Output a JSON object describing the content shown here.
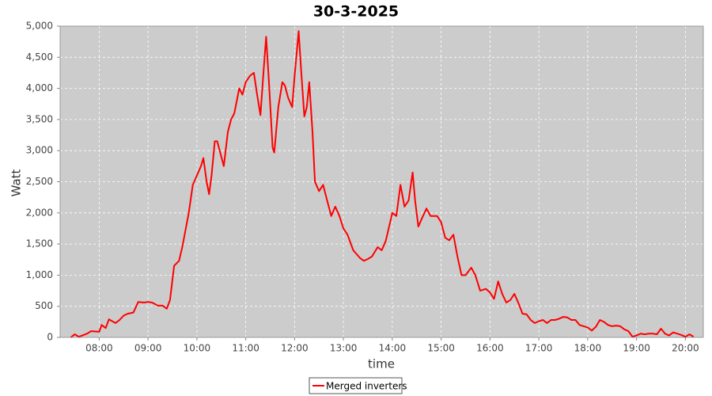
{
  "chart_data": {
    "type": "line",
    "title": "30-3-2025",
    "x_label": "time",
    "y_label": "Watt",
    "x": [
      "07:25",
      "07:30",
      "07:35",
      "07:45",
      "07:50",
      "08:00",
      "08:03",
      "08:08",
      "08:12",
      "08:20",
      "08:25",
      "08:30",
      "08:35",
      "08:42",
      "08:48",
      "08:55",
      "09:00",
      "09:05",
      "09:12",
      "09:18",
      "09:23",
      "09:27",
      "09:32",
      "09:38",
      "09:42",
      "09:50",
      "09:55",
      "10:00",
      "10:05",
      "10:08",
      "10:12",
      "10:15",
      "10:18",
      "10:22",
      "10:25",
      "10:30",
      "10:33",
      "10:38",
      "10:42",
      "10:46",
      "10:52",
      "10:56",
      "11:00",
      "11:05",
      "11:10",
      "11:14",
      "11:18",
      "11:22",
      "11:25",
      "11:28",
      "11:33",
      "11:35",
      "11:40",
      "11:45",
      "11:48",
      "11:52",
      "11:57",
      "12:00",
      "12:05",
      "12:08",
      "12:12",
      "12:15",
      "12:18",
      "12:22",
      "12:25",
      "12:30",
      "12:35",
      "12:40",
      "12:45",
      "12:50",
      "12:55",
      "13:00",
      "13:05",
      "13:12",
      "13:20",
      "13:25",
      "13:30",
      "13:35",
      "13:42",
      "13:47",
      "13:52",
      "14:00",
      "14:05",
      "14:10",
      "14:15",
      "14:20",
      "14:25",
      "14:28",
      "14:32",
      "14:36",
      "14:42",
      "14:47",
      "14:55",
      "15:00",
      "15:05",
      "15:10",
      "15:15",
      "15:20",
      "15:25",
      "15:30",
      "15:37",
      "15:42",
      "15:48",
      "15:55",
      "16:00",
      "16:05",
      "16:10",
      "16:15",
      "16:20",
      "16:25",
      "16:30",
      "16:35",
      "16:40",
      "16:45",
      "16:50",
      "16:55",
      "17:00",
      "17:05",
      "17:10",
      "17:15",
      "17:20",
      "17:25",
      "17:30",
      "17:35",
      "17:40",
      "17:45",
      "17:50",
      "17:55",
      "18:00",
      "18:05",
      "18:10",
      "18:15",
      "18:20",
      "18:25",
      "18:30",
      "18:35",
      "18:40",
      "18:45",
      "18:50",
      "18:55",
      "19:00",
      "19:05",
      "19:10",
      "19:15",
      "19:20",
      "19:25",
      "19:30",
      "19:35",
      "19:40",
      "19:45",
      "19:50",
      "19:55",
      "20:00",
      "20:05",
      "20:10"
    ],
    "series": [
      {
        "name": "Merged inverters",
        "color": "#ff0000",
        "values": [
          0,
          50,
          10,
          60,
          100,
          90,
          200,
          150,
          290,
          230,
          280,
          350,
          380,
          400,
          570,
          560,
          570,
          560,
          510,
          510,
          460,
          600,
          1150,
          1230,
          1450,
          2000,
          2450,
          2600,
          2750,
          2880,
          2500,
          2300,
          2600,
          3150,
          3150,
          2900,
          2750,
          3300,
          3500,
          3600,
          4000,
          3900,
          4100,
          4200,
          4250,
          3900,
          3570,
          4300,
          4830,
          4200,
          3050,
          2970,
          3700,
          4100,
          4050,
          3850,
          3700,
          4200,
          4920,
          4300,
          3550,
          3700,
          4100,
          3300,
          2500,
          2350,
          2450,
          2200,
          1950,
          2100,
          1950,
          1750,
          1650,
          1400,
          1280,
          1230,
          1260,
          1300,
          1450,
          1400,
          1550,
          2000,
          1950,
          2450,
          2100,
          2200,
          2650,
          2200,
          1780,
          1900,
          2070,
          1950,
          1950,
          1850,
          1600,
          1560,
          1650,
          1300,
          1000,
          1000,
          1120,
          1000,
          750,
          780,
          720,
          620,
          900,
          700,
          560,
          600,
          700,
          550,
          380,
          370,
          280,
          230,
          260,
          280,
          230,
          280,
          280,
          300,
          330,
          320,
          280,
          280,
          200,
          180,
          160,
          110,
          170,
          280,
          250,
          200,
          180,
          190,
          180,
          130,
          100,
          10,
          30,
          60,
          50,
          60,
          60,
          50,
          140,
          60,
          30,
          80,
          60,
          40,
          10,
          50,
          10
        ]
      }
    ],
    "xlim": [
      "07:12",
      "20:22"
    ],
    "xticks": [
      "08:00",
      "09:00",
      "10:00",
      "11:00",
      "12:00",
      "13:00",
      "14:00",
      "15:00",
      "16:00",
      "17:00",
      "18:00",
      "19:00",
      "20:00"
    ],
    "ylim": [
      0,
      5000
    ],
    "yticks": [
      0,
      500,
      {
        "value": 1000,
        "label": "1,000"
      },
      {
        "value": 1500,
        "label": "1,500"
      },
      {
        "value": 2000,
        "label": "2,000"
      },
      {
        "value": 2500,
        "label": "2,500"
      },
      {
        "value": 3000,
        "label": "3,000"
      },
      {
        "value": 3500,
        "label": "3,500"
      },
      {
        "value": 4000,
        "label": "4,000"
      },
      {
        "value": 4500,
        "label": "4,500"
      },
      {
        "value": 5000,
        "label": "5,000"
      }
    ],
    "grid": true,
    "legend": "bottom"
  }
}
